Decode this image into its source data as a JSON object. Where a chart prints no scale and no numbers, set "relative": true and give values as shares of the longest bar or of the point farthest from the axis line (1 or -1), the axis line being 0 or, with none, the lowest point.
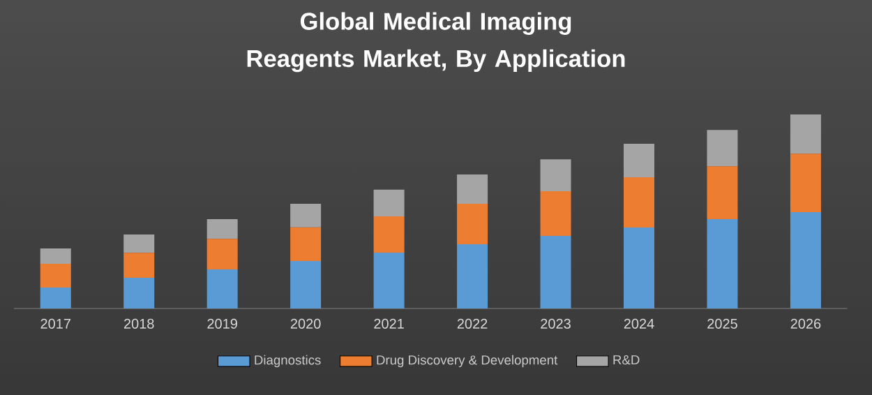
{
  "chart_data": {
    "type": "bar",
    "title": "Global Medical Imaging Reagents Market, By Application",
    "categories": [
      "2017",
      "2018",
      "2019",
      "2020",
      "2021",
      "2022",
      "2023",
      "2024",
      "2025",
      "2026"
    ],
    "stacked": true,
    "relative": true,
    "legend": "bottom",
    "series": [
      {
        "name": "Diagnostics",
        "color": "#5b9bd5",
        "values": [
          0.108,
          0.158,
          0.201,
          0.245,
          0.288,
          0.331,
          0.374,
          0.417,
          0.46,
          0.496
        ]
      },
      {
        "name": "Drug Discovery & Development",
        "color": "#ed7d31",
        "values": [
          0.122,
          0.129,
          0.158,
          0.173,
          0.187,
          0.209,
          0.23,
          0.259,
          0.273,
          0.302
        ]
      },
      {
        "name": "R&D",
        "color": "#a5a5a5",
        "values": [
          0.079,
          0.094,
          0.101,
          0.122,
          0.137,
          0.151,
          0.165,
          0.173,
          0.187,
          0.202
        ]
      }
    ]
  }
}
